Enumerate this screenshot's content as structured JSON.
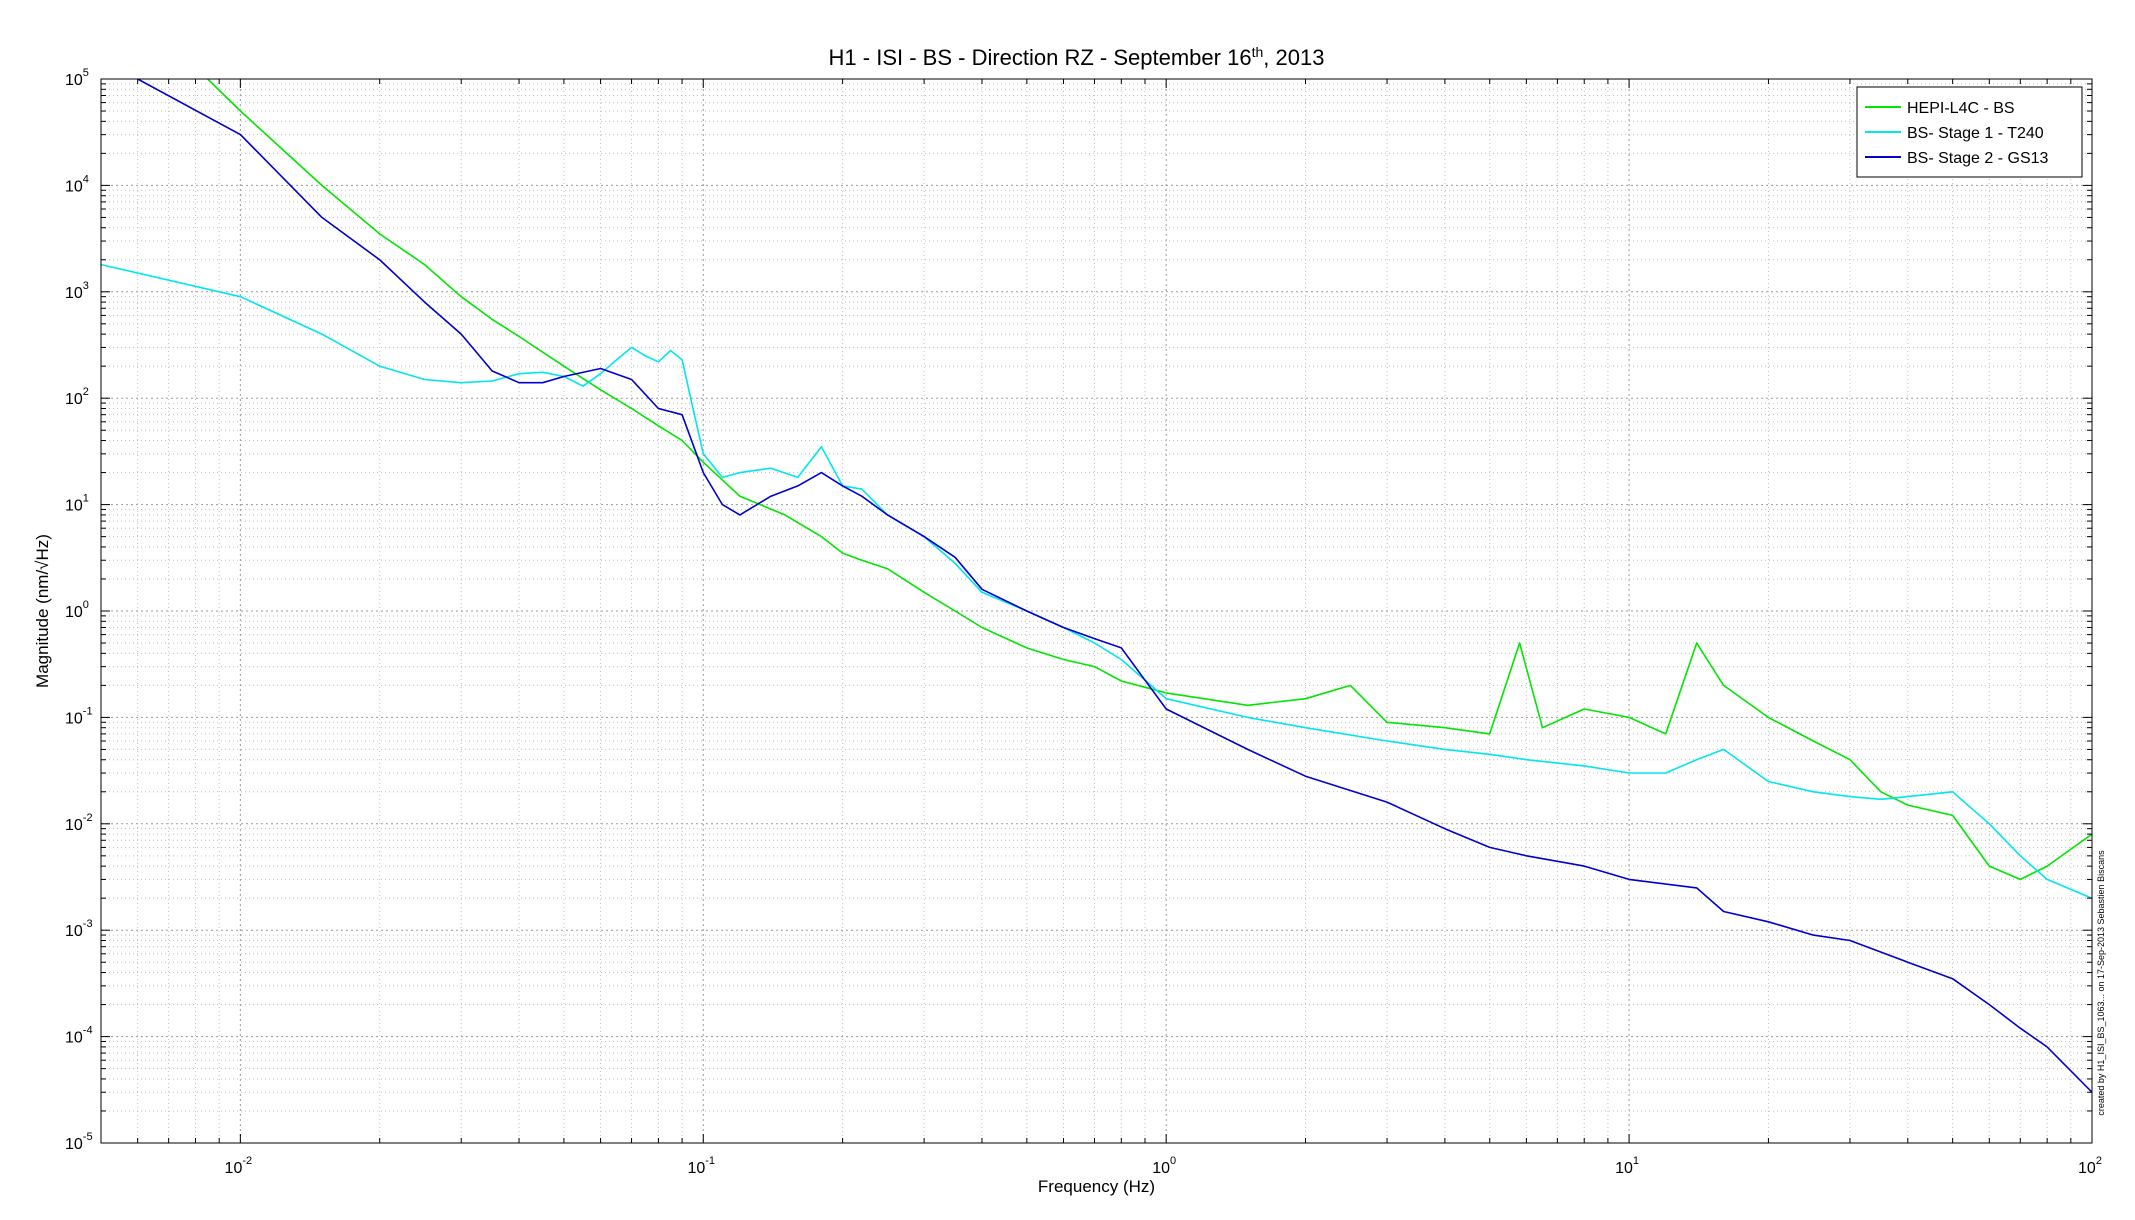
{
  "chart_data": {
    "type": "line",
    "title": {
      "prefix": "H1 - ISI - BS - Direction RZ - September 16",
      "superscript": "th",
      "suffix": ", 2013"
    },
    "xlabel": "Frequency (Hz)",
    "ylabel": "Magnitude (nm/√Hz)",
    "xscale": "log",
    "yscale": "log",
    "xlim": [
      0.005,
      100
    ],
    "ylim": [
      1e-05,
      100000
    ],
    "x_ticks": [
      {
        "value": 0.01,
        "base": "10",
        "exp": "-2"
      },
      {
        "value": 0.1,
        "base": "10",
        "exp": "-1"
      },
      {
        "value": 1,
        "base": "10",
        "exp": "0"
      },
      {
        "value": 10,
        "base": "10",
        "exp": "1"
      },
      {
        "value": 100,
        "base": "10",
        "exp": "2"
      }
    ],
    "y_ticks": [
      {
        "value": 100000,
        "base": "10",
        "exp": "5"
      },
      {
        "value": 10000,
        "base": "10",
        "exp": "4"
      },
      {
        "value": 1000,
        "base": "10",
        "exp": "3"
      },
      {
        "value": 100,
        "base": "10",
        "exp": "2"
      },
      {
        "value": 10,
        "base": "10",
        "exp": "1"
      },
      {
        "value": 1,
        "base": "10",
        "exp": "0"
      },
      {
        "value": 0.1,
        "base": "10",
        "exp": "-1"
      },
      {
        "value": 0.01,
        "base": "10",
        "exp": "-2"
      },
      {
        "value": 0.001,
        "base": "10",
        "exp": "-3"
      },
      {
        "value": 0.0001,
        "base": "10",
        "exp": "-4"
      },
      {
        "value": 1e-05,
        "base": "10",
        "exp": "-5"
      }
    ],
    "grid": true,
    "legend_position": "top-right",
    "side_annotation": "created by H1_ISI_BS_1063... on 17-Sep-2013 Sebastien Biscans",
    "series": [
      {
        "name": "HEPI-L4C - BS",
        "color": "#00e600",
        "x": [
          0.005,
          0.0085,
          0.01,
          0.015,
          0.02,
          0.025,
          0.03,
          0.035,
          0.04,
          0.05,
          0.06,
          0.07,
          0.08,
          0.09,
          0.1,
          0.12,
          0.15,
          0.18,
          0.2,
          0.22,
          0.25,
          0.3,
          0.35,
          0.4,
          0.5,
          0.6,
          0.7,
          0.8,
          1,
          1.5,
          2,
          2.5,
          3,
          4,
          5,
          5.8,
          6.5,
          8,
          10,
          12,
          14,
          16,
          20,
          25,
          30,
          35,
          40,
          50,
          60,
          70,
          80,
          100
        ],
        "y": [
          200000,
          100000,
          50000,
          10000,
          3500,
          1800,
          900,
          550,
          380,
          200,
          120,
          80,
          55,
          40,
          25,
          12,
          8,
          5,
          3.5,
          3,
          2.5,
          1.5,
          1.0,
          0.7,
          0.45,
          0.35,
          0.3,
          0.22,
          0.17,
          0.13,
          0.15,
          0.2,
          0.09,
          0.08,
          0.07,
          0.5,
          0.08,
          0.12,
          0.1,
          0.07,
          0.5,
          0.2,
          0.1,
          0.06,
          0.04,
          0.02,
          0.015,
          0.012,
          0.004,
          0.003,
          0.004,
          0.008
        ]
      },
      {
        "name": "BS- Stage 1 - T240",
        "color": "#00e5ee",
        "x": [
          0.005,
          0.01,
          0.015,
          0.02,
          0.025,
          0.03,
          0.035,
          0.04,
          0.045,
          0.05,
          0.055,
          0.06,
          0.065,
          0.07,
          0.075,
          0.08,
          0.085,
          0.09,
          0.095,
          0.1,
          0.11,
          0.12,
          0.14,
          0.16,
          0.18,
          0.2,
          0.22,
          0.25,
          0.3,
          0.35,
          0.4,
          0.5,
          0.6,
          0.7,
          0.8,
          1,
          1.5,
          2,
          3,
          4,
          5,
          6,
          8,
          10,
          12,
          14,
          16,
          20,
          25,
          30,
          35,
          40,
          50,
          60,
          70,
          80,
          100
        ],
        "y": [
          1800,
          900,
          400,
          200,
          150,
          140,
          145,
          170,
          175,
          160,
          130,
          170,
          230,
          300,
          250,
          220,
          280,
          230,
          80,
          30,
          18,
          20,
          22,
          18,
          35,
          15,
          14,
          8,
          5,
          2.8,
          1.5,
          1.0,
          0.7,
          0.5,
          0.35,
          0.15,
          0.1,
          0.08,
          0.06,
          0.05,
          0.045,
          0.04,
          0.035,
          0.03,
          0.03,
          0.04,
          0.05,
          0.025,
          0.02,
          0.018,
          0.017,
          0.018,
          0.02,
          0.01,
          0.005,
          0.003,
          0.002
        ]
      },
      {
        "name": "BS- Stage 2 - GS13",
        "color": "#0000d0",
        "x": [
          0.006,
          0.01,
          0.015,
          0.02,
          0.025,
          0.03,
          0.035,
          0.04,
          0.045,
          0.05,
          0.06,
          0.07,
          0.08,
          0.09,
          0.1,
          0.11,
          0.12,
          0.14,
          0.16,
          0.18,
          0.2,
          0.22,
          0.25,
          0.3,
          0.35,
          0.4,
          0.5,
          0.6,
          0.7,
          0.8,
          1,
          1.5,
          2,
          3,
          4,
          5,
          6,
          8,
          10,
          14,
          16,
          20,
          25,
          30,
          40,
          50,
          60,
          70,
          80,
          100
        ],
        "y": [
          100000,
          30000,
          5000,
          2000,
          800,
          400,
          180,
          140,
          140,
          160,
          190,
          150,
          80,
          70,
          20,
          10,
          8,
          12,
          15,
          20,
          15,
          12,
          8,
          5,
          3.2,
          1.6,
          1.0,
          0.7,
          0.55,
          0.45,
          0.12,
          0.05,
          0.028,
          0.016,
          0.009,
          0.006,
          0.005,
          0.004,
          0.003,
          0.0025,
          0.0015,
          0.0012,
          0.0009,
          0.0008,
          0.0005,
          0.00035,
          0.0002,
          0.00012,
          8e-05,
          3e-05
        ]
      }
    ]
  }
}
